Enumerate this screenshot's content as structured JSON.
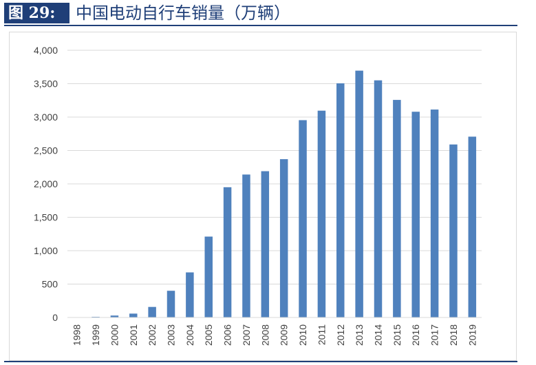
{
  "figure": {
    "label": "图 29:",
    "title": "中国电动自行车销量（万辆）"
  },
  "colors": {
    "bar": "#4f81bd",
    "accent": "#1f3f78",
    "grid": "#d9d9d9",
    "axis_text": "#404040"
  },
  "chart_data": {
    "type": "bar",
    "title": "",
    "xlabel": "",
    "ylabel": "",
    "ylim": [
      0,
      4000
    ],
    "yticks": [
      0,
      500,
      1000,
      1500,
      2000,
      2500,
      3000,
      3500,
      4000
    ],
    "ytick_labels": [
      "0",
      "500",
      "1,000",
      "1,500",
      "2,000",
      "2,500",
      "3,000",
      "3,500",
      "4,000"
    ],
    "grid": true,
    "legend": "none",
    "categories": [
      "1998",
      "1999",
      "2000",
      "2001",
      "2002",
      "2003",
      "2004",
      "2005",
      "2006",
      "2007",
      "2008",
      "2009",
      "2010",
      "2011",
      "2012",
      "2013",
      "2014",
      "2015",
      "2016",
      "2017",
      "2018",
      "2019"
    ],
    "values": [
      4,
      10,
      29,
      58,
      158,
      400,
      675,
      1211,
      1950,
      2140,
      2190,
      2370,
      2954,
      3096,
      3505,
      3695,
      3550,
      3257,
      3080,
      3113,
      2590,
      2707
    ]
  }
}
